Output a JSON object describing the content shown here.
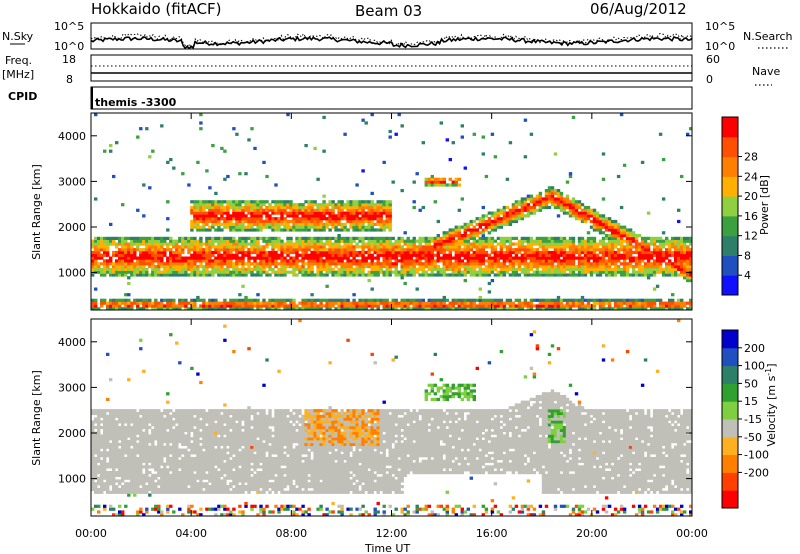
{
  "header": {
    "title": "Hokkaido (fitACF)",
    "beam": "Beam 03",
    "date": "06/Aug/2012"
  },
  "top_panels": {
    "nsky_label": "N.Sky",
    "nsearch_label": "N.Search",
    "noise_ticks_left": [
      "10^5",
      "10^0"
    ],
    "noise_ticks_right": [
      "10^5",
      "10^0"
    ],
    "freq_label": "Freq.",
    "freq_unit": "[MHz]",
    "freq_ticks": [
      "18",
      "8"
    ],
    "nave_label": "Nave",
    "nave_ticks": [
      "60",
      "0"
    ],
    "cpid_label": "CPID",
    "cpid_value": "themis -3300"
  },
  "colors": {
    "power": [
      "#1010ff",
      "#2050c0",
      "#2e7f6a",
      "#3aa040",
      "#90d040",
      "#ffb000",
      "#ff8000",
      "#ff5000",
      "#ff0000"
    ],
    "velocity": [
      "#0000cc",
      "#2050c0",
      "#2e7f6a",
      "#30a030",
      "#7ed040",
      "#c0c0b8",
      "#ffb020",
      "#ff8000",
      "#ff4000",
      "#ff0000"
    ],
    "power_bg_band": "#ff2a00",
    "ground_scatter_gray": "#c0c0b8"
  },
  "chart_data": [
    {
      "type": "heatmap",
      "name": "power",
      "ylabel": "Slant Range [km]",
      "ylim": [
        180,
        4500
      ],
      "yticks": [
        "1000",
        "2000",
        "3000",
        "4000"
      ],
      "xlim": [
        "00:00",
        "24:00"
      ],
      "colorbar": {
        "label": "Power [dB]",
        "ticks": [
          "4",
          "8",
          "12",
          "16",
          "20",
          "24",
          "28"
        ]
      },
      "regions": [
        {
          "desc": "main scatter band",
          "t_start": 0.0,
          "t_end": 24.0,
          "range_km": [
            900,
            1800
          ]
        },
        {
          "desc": "upper echo band",
          "t_start": 4.0,
          "t_end": 12.0,
          "range_km": [
            1900,
            2600
          ]
        },
        {
          "desc": "rising arc",
          "t_start": 12.0,
          "t_end": 18.4,
          "range_km_start": 1200,
          "range_km_end": 2700
        },
        {
          "desc": "descending arc",
          "t_start": 18.4,
          "t_end": 24.0,
          "range_km_start": 2700,
          "range_km_end": 1000
        },
        {
          "desc": "near range echoes",
          "t_start": 0.0,
          "t_end": 24.0,
          "range_km": [
            200,
            400
          ]
        },
        {
          "desc": "patch",
          "t_start": 13.3,
          "t_end": 14.8,
          "range_km": [
            2900,
            3100
          ]
        }
      ]
    },
    {
      "type": "heatmap",
      "name": "velocity",
      "ylabel": "Slant Range [km]",
      "xlabel": "Time UT",
      "ylim": [
        180,
        4500
      ],
      "yticks": [
        "1000",
        "2000",
        "3000",
        "4000"
      ],
      "xticks": [
        "00:00",
        "04:00",
        "08:00",
        "12:00",
        "16:00",
        "20:00",
        "00:00"
      ],
      "colorbar": {
        "label": "Velocity [m s^-1]",
        "ticks": [
          "200",
          "100",
          "50",
          "15",
          "-15",
          "-50",
          "-100",
          "-200"
        ]
      },
      "regions": [
        {
          "desc": "ground scatter band",
          "t_start": 0.0,
          "t_end": 24.0,
          "range_km": [
            700,
            2500
          ]
        },
        {
          "desc": "negative velocity patch",
          "t_start": 8.5,
          "t_end": 11.5,
          "range_km": [
            1700,
            2500
          ]
        },
        {
          "desc": "positive velocity streak",
          "t_start": 18.2,
          "t_end": 19.0,
          "range_km": [
            1800,
            2500
          ]
        },
        {
          "desc": "positive velocity patch",
          "t_start": 13.3,
          "t_end": 15.3,
          "range_km": [
            2700,
            3100
          ]
        }
      ]
    }
  ]
}
